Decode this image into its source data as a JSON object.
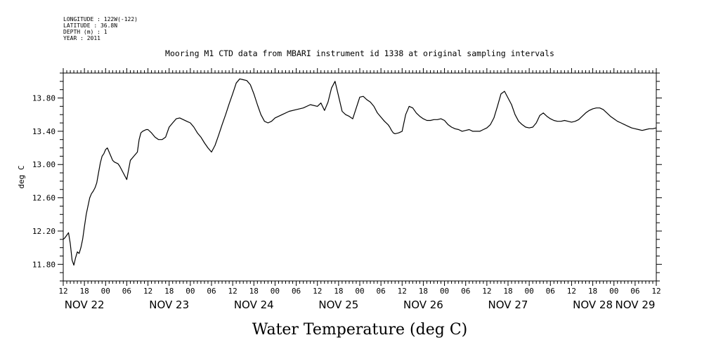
{
  "meta_lines": [
    "LONGITUDE : 122W(-122)",
    "LATITUDE : 36.8N",
    "DEPTH (m) : 1",
    "YEAR : 2011"
  ],
  "chart_data": {
    "type": "line",
    "title": "Mooring M1 CTD data from MBARI instrument id 1338 at original sampling intervals",
    "xlabel": "Water Temperature (deg C)",
    "ylabel": "deg C",
    "xlim_hours": [
      0,
      168
    ],
    "ylim": [
      11.6,
      14.1
    ],
    "yticks": [
      11.8,
      12.2,
      12.6,
      13.0,
      13.4,
      13.8
    ],
    "ytick_labels": [
      "11.80",
      "12.20",
      "12.60",
      "13.00",
      "13.40",
      "13.80"
    ],
    "xtick_labels": [
      "12",
      "18",
      "00",
      "06",
      "12",
      "18",
      "00",
      "06",
      "12",
      "18",
      "00",
      "06",
      "12",
      "18",
      "00",
      "06",
      "12",
      "18",
      "00",
      "06",
      "12",
      "18",
      "00",
      "06",
      "12",
      "18",
      "00",
      "06",
      "12"
    ],
    "day_labels": [
      "NOV 22",
      "NOV 23",
      "NOV 24",
      "NOV 25",
      "NOV 26",
      "NOV 27",
      "NOV 28",
      "NOV 29"
    ],
    "series": [
      {
        "x": [
          0,
          0.5,
          1,
          1.5,
          2,
          2.5,
          3,
          3.5,
          4,
          4.5,
          5,
          5.5,
          6,
          6.5,
          7,
          7.5,
          8,
          8.5,
          9,
          9.5,
          10,
          10.5,
          11,
          11.5,
          12,
          12.5,
          13,
          13.5,
          14,
          14.5,
          15,
          15.5,
          16,
          17,
          18,
          19,
          20,
          21,
          21.5,
          22,
          22.5,
          23,
          23.5,
          24,
          25,
          26,
          27,
          28,
          29,
          30,
          31,
          32,
          33,
          34,
          35,
          36,
          37,
          38,
          39,
          40,
          41,
          42,
          43,
          44,
          45,
          46,
          47,
          48,
          49,
          50,
          51,
          52,
          53,
          54,
          55,
          56,
          57,
          58,
          59,
          60,
          62,
          64,
          66,
          68,
          70,
          72,
          73,
          74,
          75,
          76,
          77,
          78,
          79,
          80,
          81,
          82,
          83,
          84,
          85,
          86,
          87,
          88,
          89,
          90,
          91,
          92,
          92.5,
          93,
          93.5,
          94,
          95,
          96,
          96.5,
          97,
          97.5,
          98,
          99,
          100,
          101,
          102,
          103,
          104,
          105,
          106,
          107,
          108,
          109,
          110,
          111,
          112,
          113,
          114,
          115,
          116,
          117,
          118,
          119,
          120,
          121,
          122,
          123,
          124,
          125,
          126,
          127,
          128,
          129,
          130,
          131,
          132,
          133,
          134,
          135,
          136,
          137,
          138,
          139,
          140,
          141,
          142,
          143,
          144,
          145,
          146,
          147,
          148,
          149,
          150,
          151,
          152,
          153,
          154,
          155,
          156,
          157,
          158,
          159,
          160,
          161,
          162,
          163,
          164,
          165,
          166,
          167,
          168
        ],
        "y": [
          12.1,
          12.12,
          12.15,
          12.18,
          12.05,
          11.85,
          11.79,
          11.88,
          11.95,
          11.93,
          12.0,
          12.1,
          12.25,
          12.4,
          12.5,
          12.6,
          12.65,
          12.68,
          12.72,
          12.78,
          12.9,
          13.02,
          13.1,
          13.13,
          13.18,
          13.2,
          13.15,
          13.1,
          13.05,
          13.03,
          13.02,
          13.01,
          12.98,
          12.9,
          12.82,
          13.05,
          13.1,
          13.15,
          13.3,
          13.38,
          13.4,
          13.41,
          13.42,
          13.42,
          13.38,
          13.33,
          13.3,
          13.3,
          13.33,
          13.45,
          13.5,
          13.55,
          13.56,
          13.54,
          13.52,
          13.5,
          13.45,
          13.38,
          13.33,
          13.26,
          13.2,
          13.15,
          13.23,
          13.35,
          13.48,
          13.6,
          13.73,
          13.85,
          13.98,
          14.03,
          14.02,
          14.01,
          13.96,
          13.85,
          13.72,
          13.6,
          13.52,
          13.5,
          13.52,
          13.56,
          13.6,
          13.64,
          13.66,
          13.68,
          13.72,
          13.7,
          13.74,
          13.65,
          13.75,
          13.92,
          14.0,
          13.82,
          13.64,
          13.6,
          13.58,
          13.55,
          13.68,
          13.81,
          13.82,
          13.78,
          13.75,
          13.7,
          13.62,
          13.57,
          13.52,
          13.48,
          13.45,
          13.41,
          13.38,
          13.37,
          13.38,
          13.4,
          13.5,
          13.6,
          13.65,
          13.7,
          13.68,
          13.62,
          13.58,
          13.55,
          13.53,
          13.53,
          13.54,
          13.54,
          13.55,
          13.53,
          13.48,
          13.45,
          13.43,
          13.42,
          13.4,
          13.41,
          13.42,
          13.4,
          13.4,
          13.4,
          13.42,
          13.44,
          13.48,
          13.56,
          13.7,
          13.85,
          13.88,
          13.8,
          13.72,
          13.6,
          13.52,
          13.48,
          13.45,
          13.44,
          13.45,
          13.5,
          13.59,
          13.62,
          13.58,
          13.55,
          13.53,
          13.52,
          13.52,
          13.53,
          13.52,
          13.51,
          13.52,
          13.54,
          13.58,
          13.62,
          13.65,
          13.67,
          13.68,
          13.68,
          13.66,
          13.62,
          13.58,
          13.55,
          13.52,
          13.5,
          13.48,
          13.46,
          13.44,
          13.43,
          13.42,
          13.41,
          13.42,
          13.43,
          13.43,
          13.44
        ]
      }
    ],
    "grid": false,
    "line_color": "#000000"
  }
}
